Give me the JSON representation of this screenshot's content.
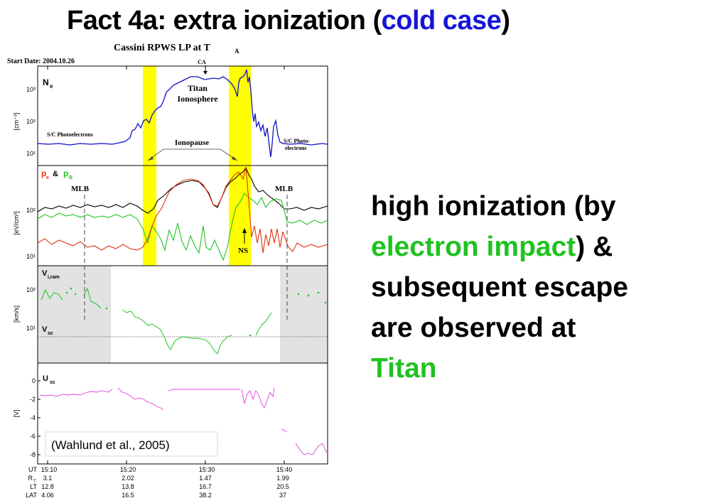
{
  "title": {
    "prefix": "Fact 4a: extra ionization (",
    "highlight": "cold case",
    "suffix": ")"
  },
  "side_text": {
    "l1": "high ionization (by",
    "l2a": "electron impact",
    "l2b": ") &",
    "l3": "subsequent escape",
    "l4": "are observed at",
    "l5": "Titan"
  },
  "colors": {
    "title_highlight": "#1515d8",
    "green_text": "#1fc21f",
    "yellow_band": "#ffff00"
  },
  "figure": {
    "header_title": "Cassini RPWS LP at T",
    "header_sub": "A",
    "start_date": "Start Date: 2004.10.26",
    "citation": "(Wahlund et al., 2005)",
    "panel1": {
      "label": "N",
      "label_sub": "e",
      "unit": "[cm⁻³]",
      "ticks": [
        "10³",
        "10²",
        "10¹"
      ],
      "ca": "CA",
      "titan1": "Titan",
      "titan2": "Ionosphere",
      "sc_photo": "S/C Photoelectrons",
      "sc_photo2a": "S/C Photo-",
      "sc_photo2b": "electrons",
      "ionopause": "Ionopause"
    },
    "panel2": {
      "pe": "p",
      "pe_sub": "e",
      "amp": "&",
      "pb": "p",
      "pb_sub": "B",
      "unit": "[eV/cm³]",
      "ticks": [
        "10²",
        "10¹"
      ],
      "mlb_left": "MLB",
      "mlb_right": "MLB",
      "ns": "NS"
    },
    "panel3": {
      "label": "V",
      "label_sub": "i,ram",
      "vsc": "V",
      "vsc_sub": "sc",
      "unit": "[km/s]",
      "ticks": [
        "10²",
        "10¹"
      ]
    },
    "panel4": {
      "label": "U",
      "label_sub": "sc",
      "unit": "[V]",
      "ticks": [
        "0",
        "-2",
        "-4",
        "-6",
        "-8"
      ]
    },
    "footer": {
      "row_labels": [
        "UT",
        "R",
        "LT",
        "LAT"
      ],
      "rt_sub": "T",
      "ut": [
        "15:10",
        "15:20",
        "15:30",
        "15:40"
      ],
      "rt": [
        "3.1",
        "2.02",
        "1.47",
        "1.99"
      ],
      "lt": [
        "12.8",
        "13.8",
        "16.7",
        "20.5"
      ],
      "lat": [
        "4.06",
        "16.5",
        "38.2",
        "37"
      ]
    }
  }
}
